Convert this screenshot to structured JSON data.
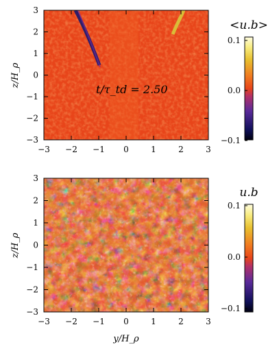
{
  "chart_data": [
    {
      "type": "heatmap",
      "title": "",
      "xlabel": "",
      "ylabel": "z/H_ρ",
      "xlim": [
        -3,
        3
      ],
      "ylim": [
        -3,
        3
      ],
      "xticks": [
        "−3",
        "−2",
        "−1",
        "0",
        "1",
        "2",
        "3"
      ],
      "yticks": [
        "−3",
        "−2",
        "−1",
        "0",
        "1",
        "2",
        "3"
      ],
      "annotation": "t/τ_td = 2.50",
      "colorbar": {
        "title": "<u.b>",
        "range": [
          -0.1,
          0.1
        ],
        "ticks": [
          "0.1",
          "0.0",
          "−0.1"
        ]
      },
      "colors": {
        "background": "#e8451a",
        "low": "#0a0a60",
        "high": "#fff9c8"
      },
      "features": [
        {
          "name": "dark streak",
          "x": [
            -1.35,
            -1.0
          ],
          "y": [
            3.0,
            0.8
          ],
          "sign": "negative"
        },
        {
          "name": "bright streak",
          "x": [
            1.8,
            2.1
          ],
          "y": [
            1.8,
            3.0
          ],
          "sign": "positive"
        }
      ]
    },
    {
      "type": "heatmap",
      "title": "",
      "xlabel": "y/H_ρ",
      "ylabel": "z/H_ρ",
      "xlim": [
        -3,
        3
      ],
      "ylim": [
        -3,
        3
      ],
      "xticks": [
        "−3",
        "−2",
        "−1",
        "0",
        "1",
        "2",
        "3"
      ],
      "yticks": [
        "−3",
        "−2",
        "−1",
        "0",
        "1",
        "2",
        "3"
      ],
      "colorbar": {
        "title": "u.b",
        "range": [
          -0.1,
          0.1
        ],
        "ticks": [
          "0.1",
          "0.0",
          "−0.1"
        ]
      },
      "colors": {
        "background": "#d8661e",
        "low": "#0a0a60",
        "high": "#fff9c8"
      }
    }
  ]
}
